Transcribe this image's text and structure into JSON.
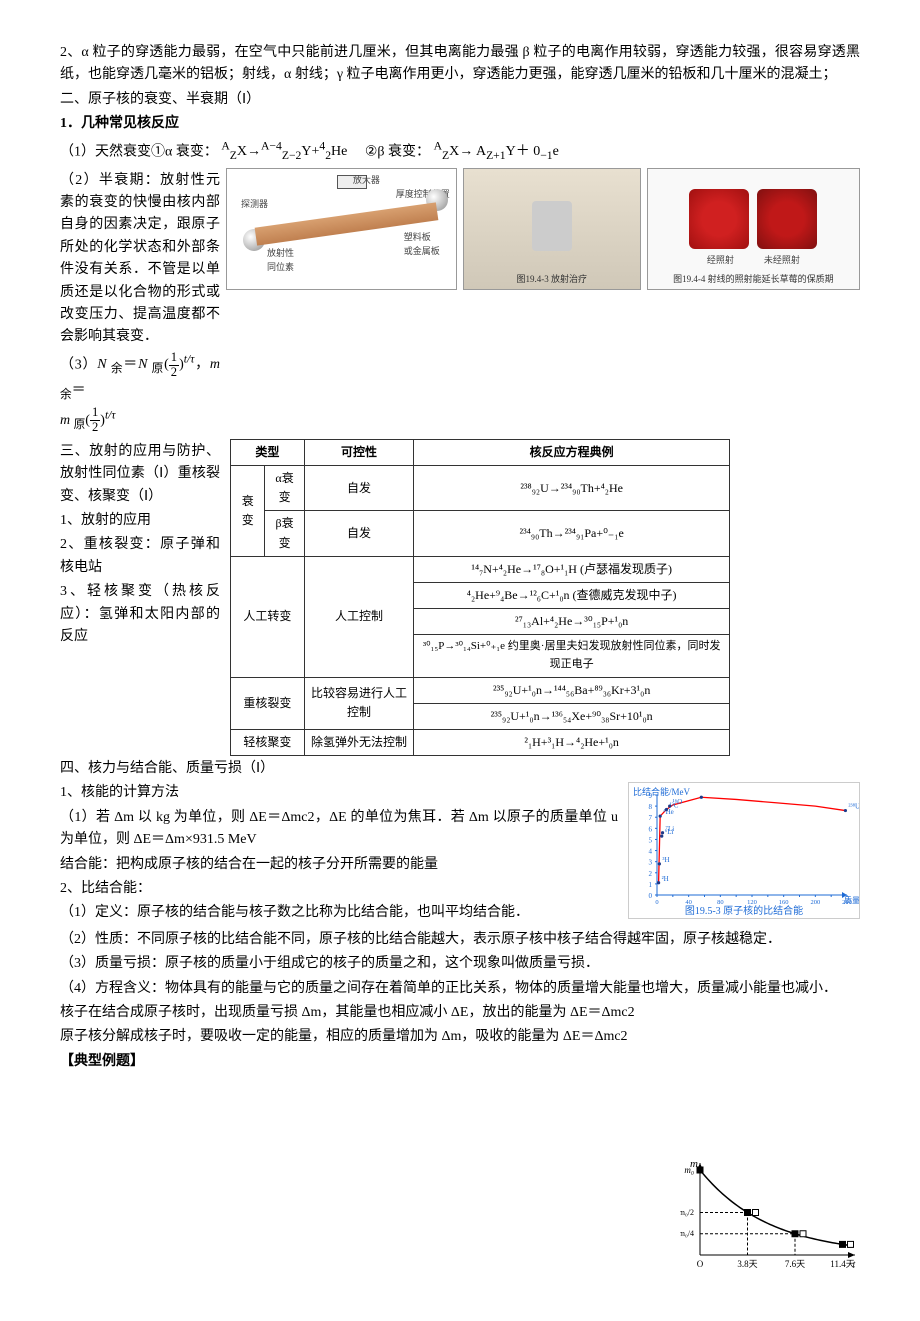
{
  "p1": "2、α 粒子的穿透能力最弱，在空气中只能前进几厘米，但其电离能力最强 β 粒子的电离作用较弱，穿透能力较强，很容易穿透黑纸，也能穿透几毫米的铝板；射线，α 射线；γ 粒子电离作用更小，穿透能力更强，能穿透几厘米的铅板和几十厘米的混凝土；",
  "p2": "二、原子核的衰变、半衰期（Ⅰ）",
  "p3": "1．几种常见核反应",
  "p4a": "（1）天然衰变①α 衰变：",
  "p4b": "②β 衰变：",
  "p5": "（2）半衰期：放射性元素的衰变的快慢由核内部自身的因素决定，跟原子所处的化学状态和外部条件没有关系．不管是以单质还是以化合物的形式或改变压力、提高温度都不会影响其衰变．",
  "p6": "（3）N 余＝N 原(1/2)^{t/τ}，m 余＝",
  "p6b": "m 原(1/2)^{t/τ}",
  "p7": "三、放射的应用与防护、放射性同位素（Ⅰ）重核裂变、核聚变（Ⅰ）",
  "p8": "1、放射的应用",
  "p9": "2、重核裂变：原子弹和核电站",
  "p10": "3、轻核聚变（热核反应）：氢弹和太阳内部的反应",
  "p11": "四、核力与结合能、质量亏损（Ⅰ）",
  "p12": "1、核能的计算方法",
  "p13": "（1）若 Δm 以 kg 为单位，则 ΔE＝Δmc2，ΔE 的单位为焦耳．若 Δm 以原子的质量单位 u 为单位，则 ΔE＝Δm×931.5 MeV",
  "p14": "   结合能：把构成原子核的结合在一起的核子分开所需要的能量",
  "p15": "2、比结合能：",
  "p16": "（1）定义：原子核的结合能与核子数之比称为比结合能，也叫平均结合能．",
  "p17": "（2）性质：不同原子核的比结合能不同，原子核的比结合能越大，表示原子核中核子结合得越牢固，原子核越稳定．",
  "p18": "（3）质量亏损：原子核的质量小于组成它的核子的质量之和，这个现象叫做质量亏损．",
  "p19": "（4）方程含义：物体具有的能量与它的质量之间存在着简单的正比关系，物体的质量增大能量也增大，质量减小能量也减小．",
  "p20": "核子在结合成原子核时，出现质量亏损 Δm，其能量也相应减小 ΔE，放出的能量为 ΔE＝Δmc2",
  "p21": "原子核分解成核子时，要吸收一定的能量，相应的质量增加为 Δm，吸收的能量为 ΔE＝Δmc2",
  "p22": "【典型例题】",
  "detector": {
    "amp": "放大器",
    "thickness": "厚度控制装置",
    "probe": "探测器",
    "plate": "塑料板\n或金属板",
    "source": "放射性\n同位素"
  },
  "fig2_cap": "图19.4-3 放射治疗",
  "fig3_left": "经照射",
  "fig3_right": "未经照射",
  "fig3_cap": "图19.4-4 射线的照射能延长草莓的保质期",
  "table": {
    "head": [
      "类型",
      "可控性",
      "核反应方程典例"
    ],
    "rows": [
      [
        "衰变",
        "α衰变",
        "自发"
      ],
      [
        "",
        "β衰变",
        "自发"
      ],
      [
        "人工转变",
        "",
        "人工控制"
      ],
      [
        "重核裂变",
        "",
        "比较容易进行人工控制"
      ],
      [
        "轻核聚变",
        "",
        "除氢弹外无法控制"
      ]
    ],
    "eqs": {
      "alpha": "²³⁸₉₂U→²³⁴₉₀Th+⁴₂He",
      "beta": "²³⁴₉₀Th→²³⁴₉₁Pa+⁰₋₁e",
      "trans1": "¹⁴₇N+⁴₂He→¹⁷₈O+¹₁H (卢瑟福发现质子)",
      "trans2": "⁴₂He+⁹₄Be→¹²₆C+¹₀n (查德威克发现中子)",
      "trans3": "²⁷₁₃Al+⁴₂He→³⁰₁₅P+¹₀n",
      "trans4": "³⁰₁₅P→³⁰₁₄Si+⁰₊₁e  约里奥·居里夫妇发现放射性同位素，同时发现正电子",
      "fis1": "²³⁵₉₂U+¹₀n→¹⁴⁴₅₆Ba+⁸⁹₃₆Kr+3¹₀n",
      "fis2": "²³⁵₉₂U+¹₀n→¹³⁶₅₄Xe+⁹⁰₃₈Sr+10¹₀n",
      "fus": "²₁H+³₁H→⁴₂He+¹₀n"
    }
  },
  "be_chart": {
    "ylabel": "比结合能/MeV",
    "xlabel": "质量数A",
    "caption": "图19.5-3 原子核的比结合能",
    "yticks": [
      0,
      1,
      2,
      3,
      4,
      5,
      6,
      7,
      8,
      9
    ],
    "xticks": [
      0,
      20,
      40,
      60,
      80,
      100,
      120,
      140,
      160,
      180,
      200,
      220,
      240
    ],
    "points": [
      {
        "A": 2,
        "E": 1.1,
        "lab": "²H"
      },
      {
        "A": 3,
        "E": 2.8,
        "lab": "³H"
      },
      {
        "A": 4,
        "E": 7.1,
        "lab": "⁴He"
      },
      {
        "A": 6,
        "E": 5.3,
        "lab": "⁶Li"
      },
      {
        "A": 7,
        "E": 5.6,
        "lab": "⁷Li"
      },
      {
        "A": 12,
        "E": 7.7,
        "lab": "¹²C"
      },
      {
        "A": 16,
        "E": 8.0,
        "lab": "¹⁶O"
      },
      {
        "A": 56,
        "E": 8.8,
        "lab": ""
      },
      {
        "A": 238,
        "E": 7.6,
        "lab": "²³⁸U"
      }
    ],
    "curve_color": "#ff0000",
    "point_color": "#1e3a8a",
    "text_color": "#1e6bd6"
  },
  "decay_chart": {
    "xvals": [
      "O",
      "3.8天",
      "7.6天",
      "11.4天",
      "t"
    ],
    "curve_color": "#000",
    "marker_filled": "#000",
    "marker_open": "#fff"
  }
}
